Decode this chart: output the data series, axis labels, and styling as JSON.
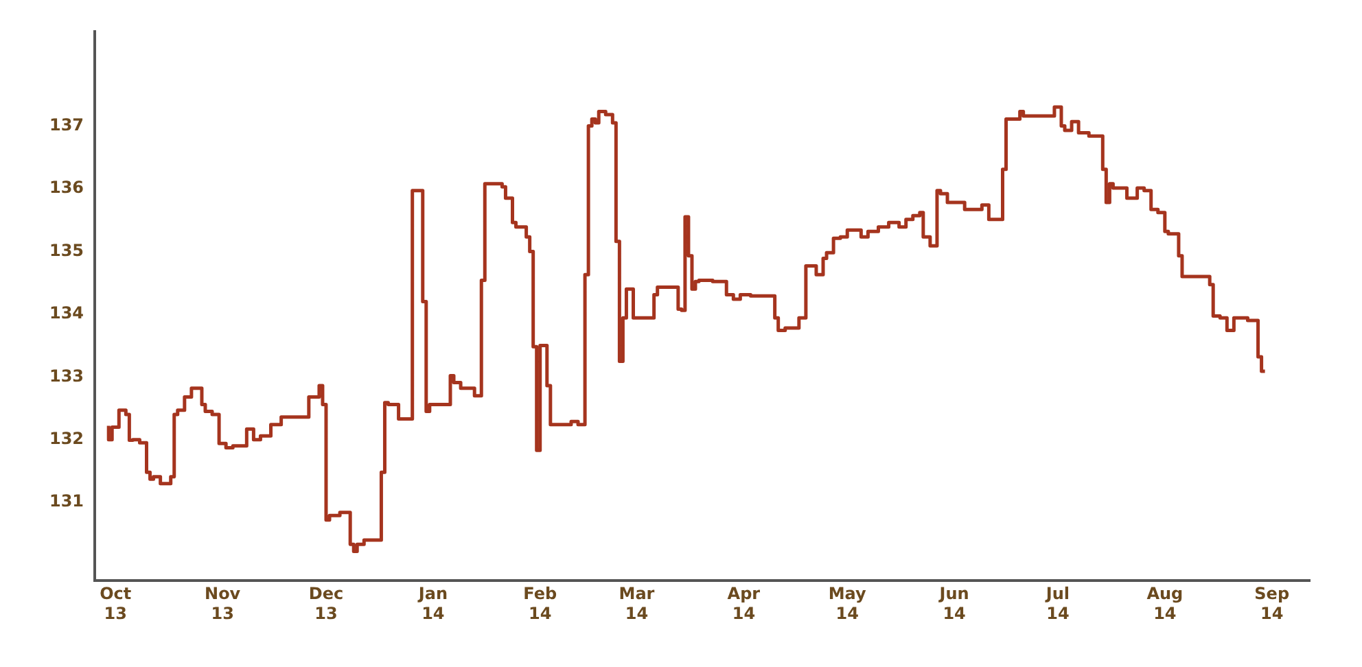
{
  "chart_data": {
    "type": "step",
    "color": "#a5341e",
    "marker": "none",
    "x": [
      "2013-09-29",
      "2013-09-30",
      "2013-10-02",
      "2013-10-04",
      "2013-10-05",
      "2013-10-06",
      "2013-10-08",
      "2013-10-10",
      "2013-10-11",
      "2013-10-12",
      "2013-10-14",
      "2013-10-17",
      "2013-10-18",
      "2013-10-19",
      "2013-10-21",
      "2013-10-23",
      "2013-10-26",
      "2013-10-27",
      "2013-10-29",
      "2013-10-31",
      "2013-11-02",
      "2013-11-04",
      "2013-11-08",
      "2013-11-10",
      "2013-11-12",
      "2013-11-15",
      "2013-11-18",
      "2013-11-20",
      "2013-11-26",
      "2013-11-29",
      "2013-11-30",
      "2013-12-01",
      "2013-12-02",
      "2013-12-05",
      "2013-12-08",
      "2013-12-09",
      "2013-12-10",
      "2013-12-12",
      "2013-12-17",
      "2013-12-18",
      "2013-12-19",
      "2013-12-22",
      "2013-12-23",
      "2013-12-26",
      "2013-12-27",
      "2013-12-29",
      "2013-12-30",
      "2013-12-31",
      "2014-01-02",
      "2014-01-06",
      "2014-01-07",
      "2014-01-09",
      "2014-01-13",
      "2014-01-15",
      "2014-01-16",
      "2014-01-17",
      "2014-01-21",
      "2014-01-22",
      "2014-01-24",
      "2014-01-25",
      "2014-01-28",
      "2014-01-29",
      "2014-01-30",
      "2014-01-31",
      "2014-02-01",
      "2014-02-02",
      "2014-02-03",
      "2014-02-04",
      "2014-02-05",
      "2014-02-10",
      "2014-02-12",
      "2014-02-14",
      "2014-02-15",
      "2014-02-16",
      "2014-02-17",
      "2014-02-18",
      "2014-02-20",
      "2014-02-22",
      "2014-02-23",
      "2014-02-24",
      "2014-02-25",
      "2014-02-26",
      "2014-02-27",
      "2014-02-28",
      "2014-03-01",
      "2014-03-04",
      "2014-03-06",
      "2014-03-07",
      "2014-03-10",
      "2014-03-13",
      "2014-03-14",
      "2014-03-15",
      "2014-03-16",
      "2014-03-17",
      "2014-03-18",
      "2014-03-19",
      "2014-03-23",
      "2014-03-27",
      "2014-03-29",
      "2014-03-31",
      "2014-04-03",
      "2014-04-06",
      "2014-04-10",
      "2014-04-11",
      "2014-04-13",
      "2014-04-17",
      "2014-04-19",
      "2014-04-20",
      "2014-04-22",
      "2014-04-24",
      "2014-04-25",
      "2014-04-27",
      "2014-04-29",
      "2014-05-01",
      "2014-05-05",
      "2014-05-07",
      "2014-05-10",
      "2014-05-13",
      "2014-05-16",
      "2014-05-18",
      "2014-05-20",
      "2014-05-22",
      "2014-05-23",
      "2014-05-25",
      "2014-05-27",
      "2014-05-28",
      "2014-05-30",
      "2014-06-01",
      "2014-06-04",
      "2014-06-05",
      "2014-06-09",
      "2014-06-11",
      "2014-06-12",
      "2014-06-15",
      "2014-06-16",
      "2014-06-17",
      "2014-06-20",
      "2014-06-21",
      "2014-06-24",
      "2014-06-30",
      "2014-07-02",
      "2014-07-03",
      "2014-07-05",
      "2014-07-07",
      "2014-07-10",
      "2014-07-14",
      "2014-07-15",
      "2014-07-16",
      "2014-07-17",
      "2014-07-21",
      "2014-07-24",
      "2014-07-26",
      "2014-07-28",
      "2014-07-30",
      "2014-08-01",
      "2014-08-02",
      "2014-08-05",
      "2014-08-06",
      "2014-08-08",
      "2014-08-14",
      "2014-08-15",
      "2014-08-17",
      "2014-08-19",
      "2014-08-21",
      "2014-08-22",
      "2014-08-25",
      "2014-08-28",
      "2014-08-29",
      "2014-08-30"
    ],
    "values": [
      132.22,
      132.0,
      132.2,
      132.47,
      132.4,
      131.99,
      132.0,
      131.95,
      131.48,
      131.37,
      131.41,
      131.3,
      131.41,
      132.4,
      132.47,
      132.68,
      132.82,
      132.56,
      132.45,
      132.4,
      131.94,
      131.87,
      131.9,
      132.17,
      132.0,
      132.06,
      132.24,
      132.36,
      132.36,
      132.68,
      132.86,
      132.56,
      130.72,
      130.79,
      130.84,
      130.33,
      130.22,
      130.33,
      130.4,
      131.48,
      132.59,
      132.56,
      132.33,
      132.33,
      135.97,
      135.97,
      134.2,
      132.45,
      132.56,
      132.56,
      133.02,
      132.91,
      132.82,
      132.7,
      134.54,
      136.08,
      136.08,
      136.03,
      135.85,
      135.46,
      135.39,
      135.23,
      135.0,
      133.48,
      131.83,
      133.5,
      133.5,
      132.86,
      132.24,
      132.24,
      132.29,
      132.24,
      134.63,
      137.0,
      137.11,
      137.05,
      137.23,
      137.18,
      137.05,
      135.16,
      133.25,
      133.94,
      134.4,
      134.4,
      133.94,
      133.94,
      133.94,
      134.31,
      134.43,
      134.43,
      134.08,
      134.06,
      135.55,
      134.93,
      134.4,
      134.52,
      134.54,
      134.52,
      134.31,
      134.24,
      134.31,
      134.29,
      134.29,
      133.94,
      133.74,
      133.78,
      133.94,
      134.77,
      134.77,
      134.63,
      134.89,
      134.98,
      135.21,
      135.23,
      135.34,
      135.23,
      135.32,
      135.39,
      135.46,
      135.39,
      135.51,
      135.57,
      135.62,
      135.23,
      135.09,
      135.97,
      135.92,
      135.78,
      135.78,
      135.67,
      135.67,
      135.74,
      135.51,
      135.51,
      136.31,
      137.11,
      137.11,
      137.23,
      137.16,
      137.16,
      137.3,
      137.0,
      136.93,
      137.07,
      136.89,
      136.84,
      136.31,
      135.78,
      136.08,
      136.01,
      135.85,
      136.01,
      135.97,
      135.67,
      135.62,
      135.32,
      135.28,
      134.93,
      134.6,
      134.6,
      134.47,
      133.97,
      133.94,
      133.74,
      133.94,
      133.94,
      133.9,
      133.32,
      133.09
    ],
    "xlim": [
      "2013-09-25",
      "2014-09-12"
    ],
    "xticks": [
      {
        "value": "2013-10-01",
        "label": "Oct 13"
      },
      {
        "value": "2013-11-01",
        "label": "Nov 13"
      },
      {
        "value": "2013-12-01",
        "label": "Dec 13"
      },
      {
        "value": "2014-01-01",
        "label": "Jan 14"
      },
      {
        "value": "2014-02-01",
        "label": "Feb 14"
      },
      {
        "value": "2014-03-01",
        "label": "Mar 14"
      },
      {
        "value": "2014-04-01",
        "label": "Apr 14"
      },
      {
        "value": "2014-05-01",
        "label": "May 14"
      },
      {
        "value": "2014-06-01",
        "label": "Jun 14"
      },
      {
        "value": "2014-07-01",
        "label": "Jul 14"
      },
      {
        "value": "2014-08-01",
        "label": "Aug 14"
      },
      {
        "value": "2014-09-01",
        "label": "Sep 14"
      }
    ],
    "ylim": [
      129.75,
      138.5
    ],
    "yticks": [
      131,
      132,
      133,
      134,
      135,
      136,
      137
    ]
  }
}
